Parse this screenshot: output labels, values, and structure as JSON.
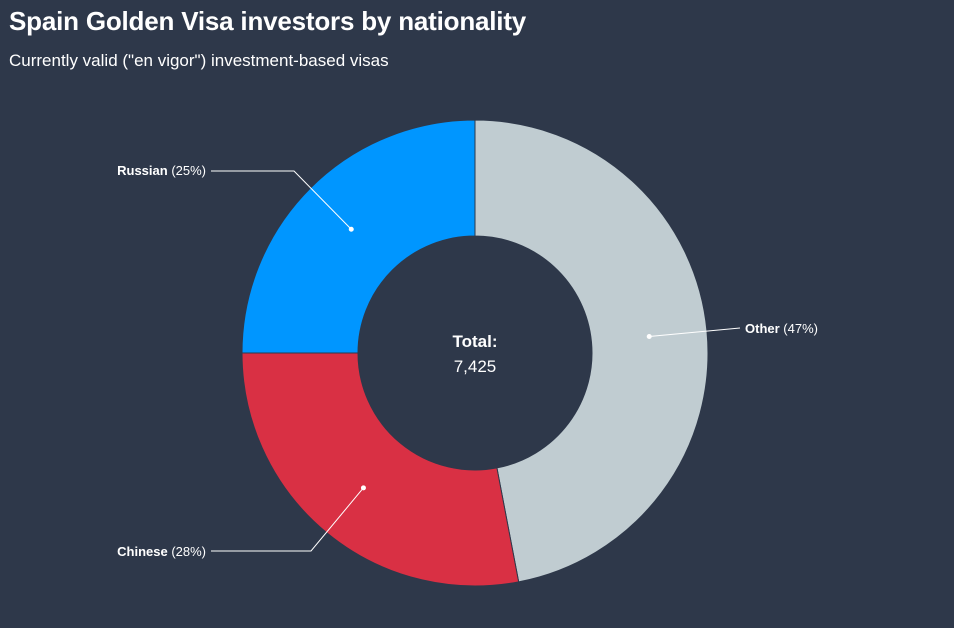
{
  "header": {
    "title": "Spain Golden Visa investors by nationality",
    "subtitle": "Currently valid (\"en vigor\") investment-based visas"
  },
  "center": {
    "label": "Total:",
    "value": "7,425"
  },
  "colors": {
    "background": "#2e384a",
    "russian": "#0096ff",
    "chinese": "#d93044",
    "other": "#c0ccd1"
  },
  "chart_data": {
    "type": "pie",
    "donut": true,
    "title": "Spain Golden Visa investors by nationality",
    "subtitle": "Currently valid (\"en vigor\") investment-based visas",
    "total": 7425,
    "slices": [
      {
        "name": "Other",
        "percent": 47,
        "label_pct": "(47%)",
        "color": "#c0ccd1"
      },
      {
        "name": "Chinese",
        "percent": 28,
        "label_pct": "(28%)",
        "color": "#d93044"
      },
      {
        "name": "Russian",
        "percent": 25,
        "label_pct": "(25%)",
        "color": "#0096ff"
      }
    ]
  }
}
